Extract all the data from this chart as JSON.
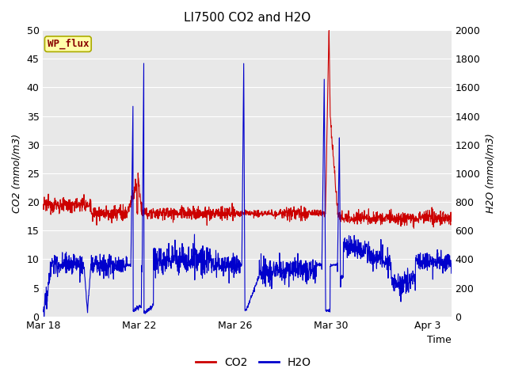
{
  "title": "LI7500 CO2 and H2O",
  "xlabel": "Time",
  "ylabel_left": "CO2 (mmol/m3)",
  "ylabel_right": "H2O (mmol/m3)",
  "annotation": "WP_flux",
  "fig_bg_color": "#ffffff",
  "plot_bg_color": "#e8e8e8",
  "co2_color": "#cc0000",
  "h2o_color": "#0000cc",
  "ylim_left": [
    0,
    50
  ],
  "ylim_right": [
    0,
    2000
  ],
  "xtick_labels": [
    "Mar 18",
    "Mar 22",
    "Mar 26",
    "Mar 30",
    "Apr 3"
  ],
  "xtick_positions": [
    0,
    4,
    8,
    12,
    16
  ],
  "xlim": [
    0,
    17
  ],
  "title_fontsize": 11,
  "axis_label_fontsize": 9,
  "tick_fontsize": 9,
  "legend_fontsize": 10,
  "annotation_box_color": "#ffffaa",
  "annotation_border_color": "#aaaa00",
  "annotation_text_color": "#880000",
  "grid_color": "#ffffff",
  "linewidth": 0.8
}
